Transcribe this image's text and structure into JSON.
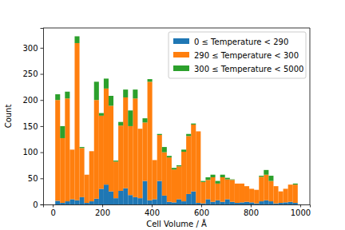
{
  "chart_data": {
    "type": "histogram",
    "stacked": true,
    "x_label": "Cell Volume / Å",
    "y_label": "Count",
    "bins": [
      10,
      29.6,
      49.2,
      68.8,
      88.4,
      108,
      127.6,
      147.2,
      166.8,
      186.4,
      206,
      225.6,
      245.2,
      264.8,
      284.4,
      304,
      323.6,
      343.2,
      362.8,
      382.4,
      402,
      421.6,
      441.2,
      460.8,
      480.4,
      500,
      519.6,
      539.2,
      558.8,
      578.4,
      598,
      617.6,
      637.2,
      656.8,
      676.4,
      696,
      715.6,
      735.2,
      754.8,
      774.4,
      794,
      813.6,
      833.2,
      852.8,
      872.4,
      892,
      911.6,
      931.2,
      950.8,
      970.4,
      990
    ],
    "series": [
      {
        "name": "0 ≤ Temperature < 290",
        "color": "#1f77b4",
        "values": [
          7,
          3,
          6,
          10,
          8,
          14,
          3,
          6,
          11,
          30,
          38,
          25,
          12,
          26,
          31,
          18,
          14,
          12,
          45,
          8,
          10,
          45,
          17,
          5,
          4,
          10,
          6,
          20,
          25,
          3,
          2,
          10,
          5,
          8,
          5,
          10,
          5,
          3,
          4,
          5,
          4,
          2,
          6,
          8,
          6,
          2,
          3,
          4,
          5,
          3
        ]
      },
      {
        "name": "290 ≤ Temperature < 300",
        "color": "#ff7f0e",
        "values": [
          193,
          124,
          197,
          95,
          301,
          94,
          54,
          96,
          189,
          140,
          184,
          164,
          70,
          125,
          174,
          132,
          189,
          133,
          112,
          227,
          75,
          88,
          83,
          85,
          63,
          63,
          95,
          111,
          128,
          137,
          41,
          37,
          47,
          32,
          47,
          38,
          42,
          37,
          36,
          30,
          26,
          26,
          47,
          49,
          39,
          33,
          22,
          26,
          33,
          35
        ]
      },
      {
        "name": "300 ≤ Temperature < 5000",
        "color": "#2ca02c",
        "values": [
          11,
          23,
          13,
          0,
          13,
          2,
          0,
          0,
          35,
          5,
          19,
          19,
          2,
          7,
          15,
          30,
          17,
          0,
          8,
          5,
          0,
          2,
          10,
          3,
          3,
          2,
          4,
          4,
          2,
          0,
          2,
          5,
          5,
          5,
          5,
          3,
          1,
          0,
          0,
          0,
          0,
          0,
          2,
          9,
          10,
          0,
          0,
          0,
          0,
          2
        ]
      }
    ],
    "xlim": [
      -39,
      1039
    ],
    "xticks": [
      0,
      200,
      400,
      600,
      800,
      1000
    ],
    "ylim": [
      0,
      338
    ],
    "yticks": [
      0,
      50,
      100,
      150,
      200,
      250,
      300
    ],
    "legend": "upper right"
  }
}
